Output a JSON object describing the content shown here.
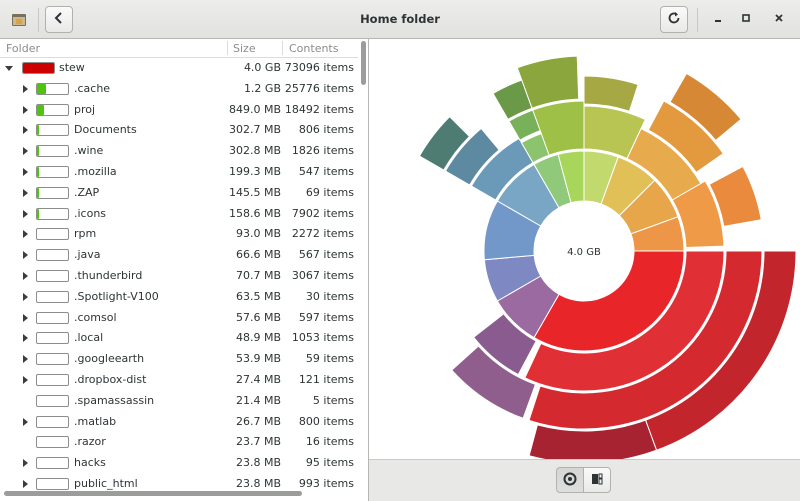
{
  "window": {
    "title": "Home folder"
  },
  "columns": {
    "folder": "Folder",
    "size": "Size",
    "contents": "Contents"
  },
  "rows": [
    {
      "name": "stew",
      "size": "4.0 GB",
      "contents": "73096 items",
      "fill": 1.0,
      "fill_color": "#cc0000",
      "expander": "open",
      "level": 0
    },
    {
      "name": ".cache",
      "size": "1.2 GB",
      "contents": "25776 items",
      "fill": 0.3,
      "fill_color": "#4ec40f",
      "expander": "closed",
      "level": 1
    },
    {
      "name": "proj",
      "size": "849.0 MB",
      "contents": "18492 items",
      "fill": 0.21,
      "fill_color": "#4ec40f",
      "expander": "closed",
      "level": 1
    },
    {
      "name": "Documents",
      "size": "302.7 MB",
      "contents": "806 items",
      "fill": 0.07,
      "fill_color": "#4ec40f",
      "expander": "closed",
      "level": 1
    },
    {
      "name": ".wine",
      "size": "302.8 MB",
      "contents": "1826 items",
      "fill": 0.07,
      "fill_color": "#4ec40f",
      "expander": "closed",
      "level": 1
    },
    {
      "name": ".mozilla",
      "size": "199.3 MB",
      "contents": "547 items",
      "fill": 0.05,
      "fill_color": "#4ec40f",
      "expander": "closed",
      "level": 1
    },
    {
      "name": ".ZAP",
      "size": "145.5 MB",
      "contents": "69 items",
      "fill": 0.04,
      "fill_color": "#4ec40f",
      "expander": "closed",
      "level": 1
    },
    {
      "name": ".icons",
      "size": "158.6 MB",
      "contents": "7902 items",
      "fill": 0.04,
      "fill_color": "#4ec40f",
      "expander": "closed",
      "level": 1
    },
    {
      "name": "rpm",
      "size": "93.0 MB",
      "contents": "2272 items",
      "fill": 0.0,
      "fill_color": "#4ec40f",
      "expander": "closed",
      "level": 1
    },
    {
      "name": ".java",
      "size": "66.6 MB",
      "contents": "567 items",
      "fill": 0.0,
      "fill_color": "#4ec40f",
      "expander": "closed",
      "level": 1
    },
    {
      "name": ".thunderbird",
      "size": "70.7 MB",
      "contents": "3067 items",
      "fill": 0.0,
      "fill_color": "#4ec40f",
      "expander": "closed",
      "level": 1
    },
    {
      "name": ".Spotlight-V100",
      "size": "63.5 MB",
      "contents": "30 items",
      "fill": 0.0,
      "fill_color": "#4ec40f",
      "expander": "closed",
      "level": 1
    },
    {
      "name": ".comsol",
      "size": "57.6 MB",
      "contents": "597 items",
      "fill": 0.0,
      "fill_color": "#4ec40f",
      "expander": "closed",
      "level": 1
    },
    {
      "name": ".local",
      "size": "48.9 MB",
      "contents": "1053 items",
      "fill": 0.0,
      "fill_color": "#4ec40f",
      "expander": "closed",
      "level": 1
    },
    {
      "name": ".googleearth",
      "size": "53.9 MB",
      "contents": "59 items",
      "fill": 0.0,
      "fill_color": "#4ec40f",
      "expander": "closed",
      "level": 1
    },
    {
      "name": ".dropbox-dist",
      "size": "27.4 MB",
      "contents": "121 items",
      "fill": 0.0,
      "fill_color": "#4ec40f",
      "expander": "closed",
      "level": 1
    },
    {
      "name": ".spamassassin",
      "size": "21.4 MB",
      "contents": "5 items",
      "fill": 0.0,
      "fill_color": "#4ec40f",
      "expander": "none",
      "level": 1
    },
    {
      "name": ".matlab",
      "size": "26.7 MB",
      "contents": "800 items",
      "fill": 0.0,
      "fill_color": "#4ec40f",
      "expander": "closed",
      "level": 1
    },
    {
      "name": ".razor",
      "size": "23.7 MB",
      "contents": "16 items",
      "fill": 0.0,
      "fill_color": "#4ec40f",
      "expander": "none",
      "level": 1
    },
    {
      "name": "hacks",
      "size": "23.8 MB",
      "contents": "95 items",
      "fill": 0.0,
      "fill_color": "#4ec40f",
      "expander": "closed",
      "level": 1
    },
    {
      "name": "public_html",
      "size": "23.8 MB",
      "contents": "993 items",
      "fill": 0.0,
      "fill_color": "#4ec40f",
      "expander": "closed",
      "level": 1
    }
  ],
  "chart": {
    "center_label": "4.0 GB"
  },
  "icons": {
    "app": "folder-icon",
    "back": "go-previous-icon",
    "reload": "view-refresh-icon",
    "minimize": "window-minimize-icon",
    "maximize": "window-maximize-icon",
    "close": "window-close-icon",
    "rings_view": "rings-chart-icon",
    "treemap_view": "treemap-chart-icon"
  }
}
